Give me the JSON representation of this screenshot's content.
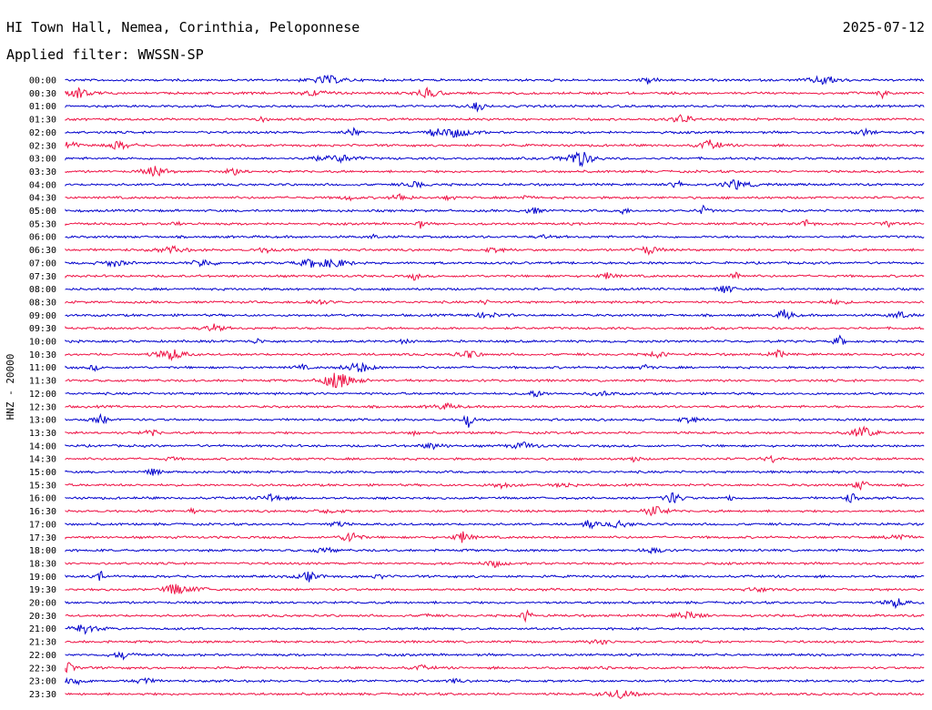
{
  "header": {
    "station": "HI Town Hall, Nemea, Corinthia, Peloponnese",
    "date": "2025-07-12",
    "filter": "Applied filter: WWSSN-SP"
  },
  "chart_data": {
    "type": "line",
    "ylabel": "HNZ - 20000",
    "row_labels": [
      "00:00",
      "00:30",
      "01:00",
      "01:30",
      "02:00",
      "02:30",
      "03:00",
      "03:30",
      "04:00",
      "04:30",
      "05:00",
      "05:30",
      "06:00",
      "06:30",
      "07:00",
      "07:30",
      "08:00",
      "08:30",
      "09:00",
      "09:30",
      "10:00",
      "10:30",
      "11:00",
      "11:30",
      "12:00",
      "12:30",
      "13:00",
      "13:30",
      "14:00",
      "14:30",
      "15:00",
      "15:30",
      "16:00",
      "16:30",
      "17:00",
      "17:30",
      "18:00",
      "18:30",
      "19:00",
      "19:30",
      "20:00",
      "20:30",
      "21:00",
      "21:30",
      "22:00",
      "22:30",
      "23:00",
      "23:30"
    ],
    "row_minutes": 30,
    "colors": [
      "#0000cc",
      "#ee1144"
    ]
  }
}
